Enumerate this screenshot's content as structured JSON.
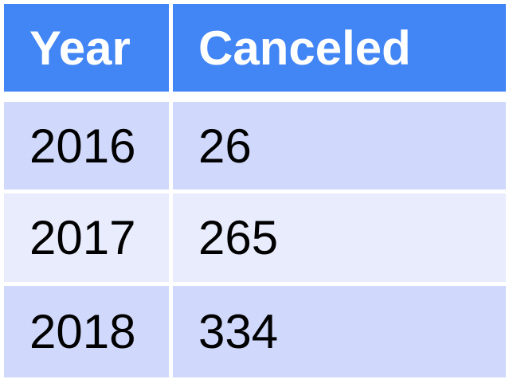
{
  "chart_data": {
    "type": "table",
    "columns": [
      "Year",
      "Canceled"
    ],
    "rows": [
      [
        "2016",
        "26"
      ],
      [
        "2017",
        "265"
      ],
      [
        "2018",
        "334"
      ]
    ]
  },
  "colors": {
    "header_bg": "#4285f4",
    "header_text": "#ffffff",
    "row_dark": "#d0d9fb",
    "row_light": "#e9ecfd"
  }
}
